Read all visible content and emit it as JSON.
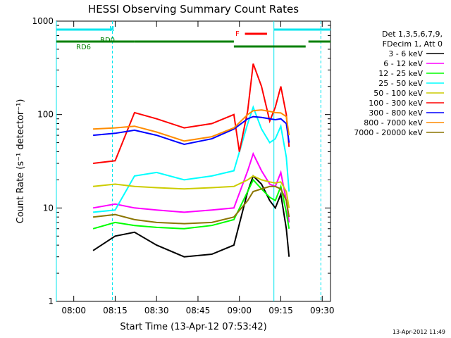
{
  "chart_data": {
    "type": "line",
    "title": "HESSI Observing Summary Count Rates",
    "xlabel": "Start Time (13-Apr-12 07:53:42)",
    "ylabel": "Count Rate (s⁻¹ detector⁻¹)",
    "x_ticks": [
      "08:00",
      "08:15",
      "08:30",
      "08:45",
      "09:00",
      "09:15",
      "09:30"
    ],
    "y_ticks": [
      "1",
      "10",
      "100",
      "1000"
    ],
    "y_scale": "log",
    "ylim": [
      1,
      1000
    ],
    "xlim": [
      "07:53:42",
      "09:33:00"
    ],
    "legend_header": [
      "Det 1,3,5,6,7,9,",
      "FDecim 1, Att 0"
    ],
    "series": [
      {
        "name": "3 - 6 keV",
        "color": "#000000",
        "points": [
          [
            "08:07",
            3.5
          ],
          [
            "08:15",
            5
          ],
          [
            "08:22",
            5.5
          ],
          [
            "08:30",
            4
          ],
          [
            "08:40",
            3
          ],
          [
            "08:50",
            3.2
          ],
          [
            "08:58",
            4
          ],
          [
            "09:03",
            15
          ],
          [
            "09:05",
            22
          ],
          [
            "09:08",
            18
          ],
          [
            "09:11",
            12
          ],
          [
            "09:13",
            10
          ],
          [
            "09:15",
            14
          ],
          [
            "09:17",
            6
          ],
          [
            "09:18",
            3
          ]
        ]
      },
      {
        "name": "6 - 12 keV",
        "color": "#ff00ff",
        "points": [
          [
            "08:07",
            10
          ],
          [
            "08:15",
            11
          ],
          [
            "08:22",
            10
          ],
          [
            "08:30",
            9.5
          ],
          [
            "08:40",
            9
          ],
          [
            "08:50",
            9.5
          ],
          [
            "08:58",
            10
          ],
          [
            "09:03",
            25
          ],
          [
            "09:05",
            38
          ],
          [
            "09:08",
            25
          ],
          [
            "09:11",
            18
          ],
          [
            "09:13",
            17
          ],
          [
            "09:15",
            24
          ],
          [
            "09:17",
            12
          ],
          [
            "09:18",
            7
          ]
        ]
      },
      {
        "name": "12 - 25 keV",
        "color": "#00ff00",
        "points": [
          [
            "08:07",
            6
          ],
          [
            "08:15",
            7
          ],
          [
            "08:22",
            6.5
          ],
          [
            "08:30",
            6.2
          ],
          [
            "08:40",
            6
          ],
          [
            "08:50",
            6.5
          ],
          [
            "08:58",
            7.5
          ],
          [
            "09:03",
            15
          ],
          [
            "09:05",
            20
          ],
          [
            "09:08",
            16
          ],
          [
            "09:11",
            13
          ],
          [
            "09:13",
            12
          ],
          [
            "09:15",
            17
          ],
          [
            "09:17",
            9
          ],
          [
            "09:18",
            6
          ]
        ]
      },
      {
        "name": "25 - 50 keV",
        "color": "#00ffff",
        "points": [
          [
            "08:07",
            9
          ],
          [
            "08:15",
            9.5
          ],
          [
            "08:22",
            22
          ],
          [
            "08:30",
            24
          ],
          [
            "08:40",
            20
          ],
          [
            "08:50",
            22
          ],
          [
            "08:58",
            25
          ],
          [
            "09:03",
            80
          ],
          [
            "09:05",
            120
          ],
          [
            "09:08",
            70
          ],
          [
            "09:11",
            50
          ],
          [
            "09:13",
            55
          ],
          [
            "09:15",
            75
          ],
          [
            "09:17",
            35
          ],
          [
            "09:18",
            15
          ]
        ]
      },
      {
        "name": "50 - 100 keV",
        "color": "#cccc00",
        "points": [
          [
            "08:07",
            17
          ],
          [
            "08:15",
            18
          ],
          [
            "08:22",
            17
          ],
          [
            "08:30",
            16.5
          ],
          [
            "08:40",
            16
          ],
          [
            "08:50",
            16.5
          ],
          [
            "08:58",
            17
          ],
          [
            "09:03",
            20
          ],
          [
            "09:05",
            22
          ],
          [
            "09:08",
            20
          ],
          [
            "09:11",
            19
          ],
          [
            "09:13",
            18.5
          ],
          [
            "09:15",
            19
          ],
          [
            "09:17",
            15
          ],
          [
            "09:18",
            10
          ]
        ]
      },
      {
        "name": "100 - 300 keV",
        "color": "#ff0000",
        "points": [
          [
            "08:07",
            30
          ],
          [
            "08:15",
            32
          ],
          [
            "08:22",
            105
          ],
          [
            "08:30",
            90
          ],
          [
            "08:40",
            72
          ],
          [
            "08:50",
            80
          ],
          [
            "08:58",
            100
          ],
          [
            "09:00",
            40
          ],
          [
            "09:03",
            110
          ],
          [
            "09:05",
            350
          ],
          [
            "09:08",
            200
          ],
          [
            "09:11",
            85
          ],
          [
            "09:13",
            120
          ],
          [
            "09:15",
            200
          ],
          [
            "09:17",
            100
          ],
          [
            "09:18",
            45
          ]
        ]
      },
      {
        "name": "300 - 800 keV",
        "color": "#0000ff",
        "points": [
          [
            "08:07",
            60
          ],
          [
            "08:15",
            63
          ],
          [
            "08:22",
            68
          ],
          [
            "08:30",
            60
          ],
          [
            "08:40",
            48
          ],
          [
            "08:50",
            55
          ],
          [
            "08:58",
            70
          ],
          [
            "09:03",
            90
          ],
          [
            "09:05",
            95
          ],
          [
            "09:08",
            93
          ],
          [
            "09:11",
            90
          ],
          [
            "09:13",
            88
          ],
          [
            "09:15",
            90
          ],
          [
            "09:17",
            80
          ],
          [
            "09:18",
            50
          ]
        ]
      },
      {
        "name": "800 - 7000 keV",
        "color": "#ff8c00",
        "points": [
          [
            "08:07",
            70
          ],
          [
            "08:15",
            72
          ],
          [
            "08:22",
            75
          ],
          [
            "08:30",
            65
          ],
          [
            "08:40",
            52
          ],
          [
            "08:50",
            58
          ],
          [
            "08:58",
            72
          ],
          [
            "09:03",
            100
          ],
          [
            "09:05",
            110
          ],
          [
            "09:08",
            112
          ],
          [
            "09:11",
            108
          ],
          [
            "09:13",
            105
          ],
          [
            "09:15",
            104
          ],
          [
            "09:17",
            95
          ],
          [
            "09:18",
            60
          ]
        ]
      },
      {
        "name": "7000 - 20000 keV",
        "color": "#8b7500",
        "points": [
          [
            "08:07",
            8
          ],
          [
            "08:15",
            8.5
          ],
          [
            "08:22",
            7.5
          ],
          [
            "08:30",
            7
          ],
          [
            "08:40",
            6.8
          ],
          [
            "08:50",
            7
          ],
          [
            "08:58",
            8
          ],
          [
            "09:03",
            12
          ],
          [
            "09:05",
            15
          ],
          [
            "09:08",
            16
          ],
          [
            "09:11",
            17
          ],
          [
            "09:13",
            17
          ],
          [
            "09:15",
            16
          ],
          [
            "09:17",
            12
          ],
          [
            "09:18",
            8
          ]
        ]
      }
    ],
    "annotations": {
      "attenuator_labels": [
        {
          "text": "N",
          "color": "#00e5ee"
        },
        {
          "text": "RD0",
          "color": "#008000"
        },
        {
          "text": "RD6",
          "color": "#008000"
        },
        {
          "text": "F",
          "color": "#ff0000"
        }
      ],
      "eclipse_bars": [
        {
          "color": "#00e5ee",
          "from": "07:53:42",
          "to": "08:14:00",
          "level": "top"
        },
        {
          "color": "#00e5ee",
          "from": "09:12:30",
          "to": "09:33:00",
          "level": "top"
        },
        {
          "color": "#ff0000",
          "from": "09:02:00",
          "to": "09:10:00",
          "level": "mid"
        },
        {
          "color": "#008000",
          "from": "07:53:42",
          "to": "08:22:00",
          "level": "low"
        },
        {
          "color": "#008000",
          "from": "08:22:00",
          "to": "08:58:00",
          "level": "low"
        },
        {
          "color": "#008000",
          "from": "08:58:00",
          "to": "09:24:00",
          "level": "lower"
        },
        {
          "color": "#008000",
          "from": "09:25:00",
          "to": "09:33:00",
          "level": "low"
        }
      ],
      "vertical_lines": [
        {
          "time": "08:14:00",
          "color": "#00e5ee",
          "style": "dashed"
        },
        {
          "time": "09:12:30",
          "color": "#00e5ee",
          "style": "solid"
        },
        {
          "time": "09:29:30",
          "color": "#00e5ee",
          "style": "dashed"
        },
        {
          "time": "07:53:42",
          "color": "#00e5ee",
          "style": "solid"
        }
      ]
    },
    "grid": false,
    "legend_position": "right"
  },
  "stamp": "13-Apr-2012 11:49"
}
